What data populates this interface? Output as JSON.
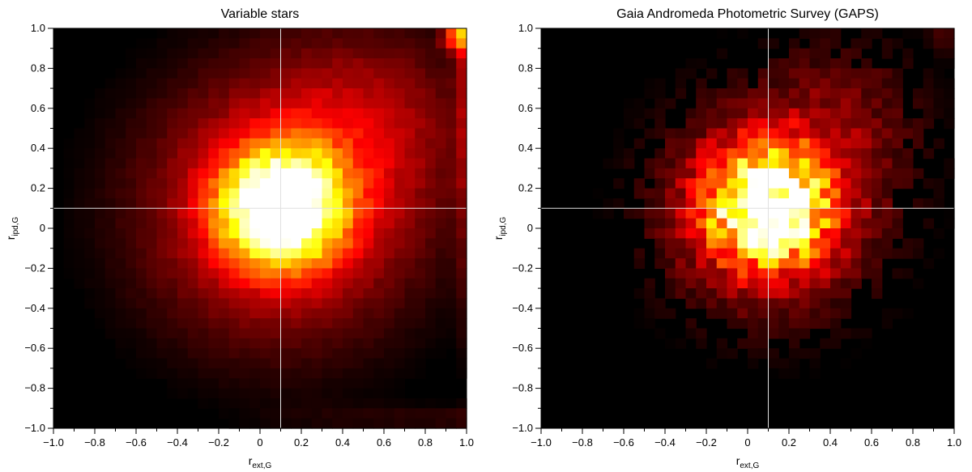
{
  "chart_data": [
    {
      "type": "heatmap",
      "title": "Variable stars",
      "xlabel": {
        "main": "r",
        "sub": "ext,G"
      },
      "ylabel": {
        "main": "r",
        "sub": "ipd,G"
      },
      "xlim": [
        -1.0,
        1.0
      ],
      "ylim": [
        -1.0,
        1.0
      ],
      "x_ticks": [
        "−1.0",
        "−0.8",
        "−0.6",
        "−0.4",
        "−0.2",
        "0",
        "0.2",
        "0.4",
        "0.6",
        "0.8",
        "1.0"
      ],
      "y_ticks": [
        "−1.0",
        "−0.8",
        "−0.6",
        "−0.4",
        "−0.2",
        "0",
        "0.2",
        "0.4",
        "0.6",
        "0.8",
        "1.0"
      ],
      "bins": 40,
      "colormap": "hot",
      "density_peak": {
        "x": 0.1,
        "y": 0.1
      },
      "reference_lines": {
        "x": 0.1,
        "y": 0.1,
        "color": "#e0e0e0"
      },
      "features": [
        "diffuse halo toward upper-right",
        "hot spot at top-right corner (x≈0.95, y≈0.95)",
        "bright column near x≈1.0"
      ],
      "grid": false
    },
    {
      "type": "heatmap",
      "title": "Gaia Andromeda Photometric Survey (GAPS)",
      "xlabel": {
        "main": "r",
        "sub": "ext,G"
      },
      "ylabel": {
        "main": "r",
        "sub": "ipd,G"
      },
      "xlim": [
        -1.0,
        1.0
      ],
      "ylim": [
        -1.0,
        1.0
      ],
      "x_ticks": [
        "−1.0",
        "−0.8",
        "−0.6",
        "−0.4",
        "−0.2",
        "0",
        "0.2",
        "0.4",
        "0.6",
        "0.8",
        "1.0"
      ],
      "y_ticks": [
        "−1.0",
        "−0.8",
        "−0.6",
        "−0.4",
        "−0.2",
        "0",
        "0.2",
        "0.4",
        "0.6",
        "0.8",
        "1.0"
      ],
      "bins": 40,
      "colormap": "hot",
      "density_peak": {
        "x": 0.1,
        "y": 0.1
      },
      "reference_lines": {
        "x": 0.1,
        "y": 0.1,
        "color": "#e0e0e0"
      },
      "features": [
        "compact core",
        "noisy sparse tail toward lower-right",
        "empty left region below y≈0"
      ],
      "grid": false
    }
  ]
}
